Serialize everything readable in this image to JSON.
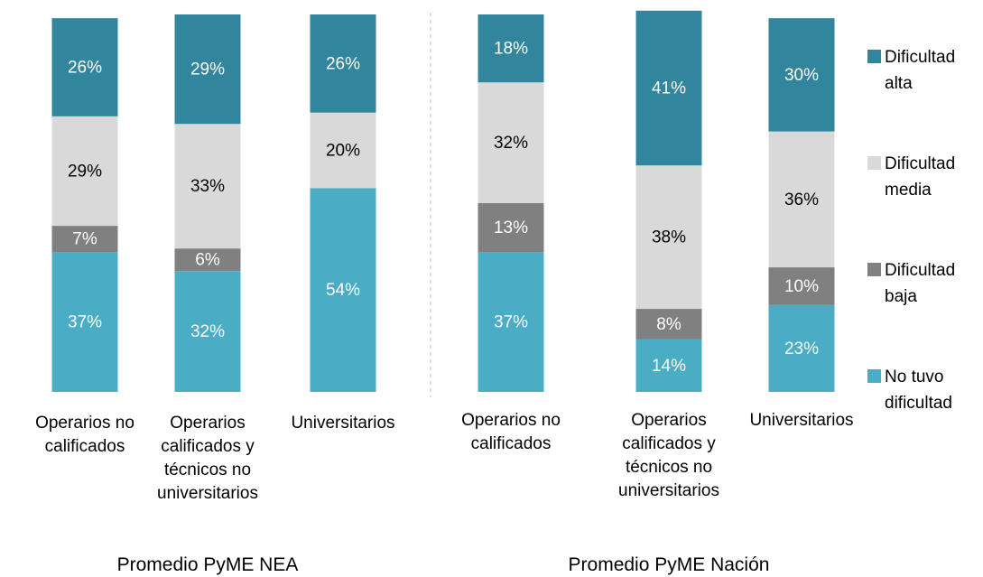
{
  "chart_data": {
    "type": "stacked_bar",
    "categories": [
      "Operarios no calificados",
      "Operarios calificados y técnicos no universitarios",
      "Universitarios",
      "Operarios no calificados",
      "Operarios calificados y técnicos no universitarios",
      "Universitarios"
    ],
    "groups": [
      "Promedio PyME NEA",
      "Promedio PyME Nación"
    ],
    "ylim": [
      0,
      100
    ],
    "series": [
      {
        "name": "No tuvo dificultad",
        "color": "#4bacc6",
        "label_color": "#ffffff",
        "values": [
          37,
          32,
          54,
          37,
          14,
          23
        ],
        "value_labels": [
          "37%",
          "32%",
          "54%",
          "37%",
          "14%",
          "23%"
        ]
      },
      {
        "name": "Dificultad baja",
        "color": "#808080",
        "label_color": "#ffffff",
        "values": [
          7,
          6,
          null,
          13,
          8,
          10
        ],
        "value_labels": [
          "7%",
          "6%",
          null,
          "13%",
          "8%",
          "10%"
        ]
      },
      {
        "name": "Dificultad media",
        "color": "#d9d9d9",
        "label_color": "#000000",
        "values": [
          29,
          33,
          20,
          32,
          38,
          36
        ],
        "value_labels": [
          "29%",
          "33%",
          "20%",
          "32%",
          "38%",
          "36%"
        ]
      },
      {
        "name": "Dificultad alta",
        "color": "#31859c",
        "label_color": "#ffffff",
        "values": [
          26,
          29,
          26,
          18,
          41,
          30
        ],
        "value_labels": [
          "26%",
          "29%",
          "26%",
          "18%",
          "41%",
          "30%"
        ]
      }
    ]
  }
}
